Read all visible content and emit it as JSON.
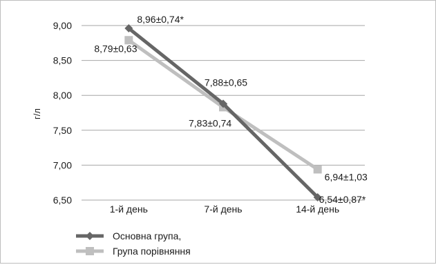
{
  "chart_data": {
    "type": "line",
    "categories": [
      "1-й день",
      "7-й день",
      "14-й день"
    ],
    "ylabel": "г/л",
    "ylim": [
      6.5,
      9.0
    ],
    "yticks": [
      "6,50",
      "7,00",
      "7,50",
      "8,00",
      "8,50",
      "9,00"
    ],
    "grid": true,
    "legend_position": "bottom-left",
    "series": [
      {
        "name": "Основна група,",
        "values": [
          8.96,
          7.88,
          6.54
        ],
        "labels": [
          "8,96±0,74*",
          "7,88±0,65",
          "6,54±0,87*"
        ],
        "color": "#666666",
        "marker": "diamond"
      },
      {
        "name": "Група порівняння",
        "values": [
          8.79,
          7.83,
          6.94
        ],
        "labels": [
          "8,79±0,63",
          "7,83±0,74",
          "6,94±1,03"
        ],
        "color": "#bfbfbf",
        "marker": "square"
      }
    ]
  }
}
